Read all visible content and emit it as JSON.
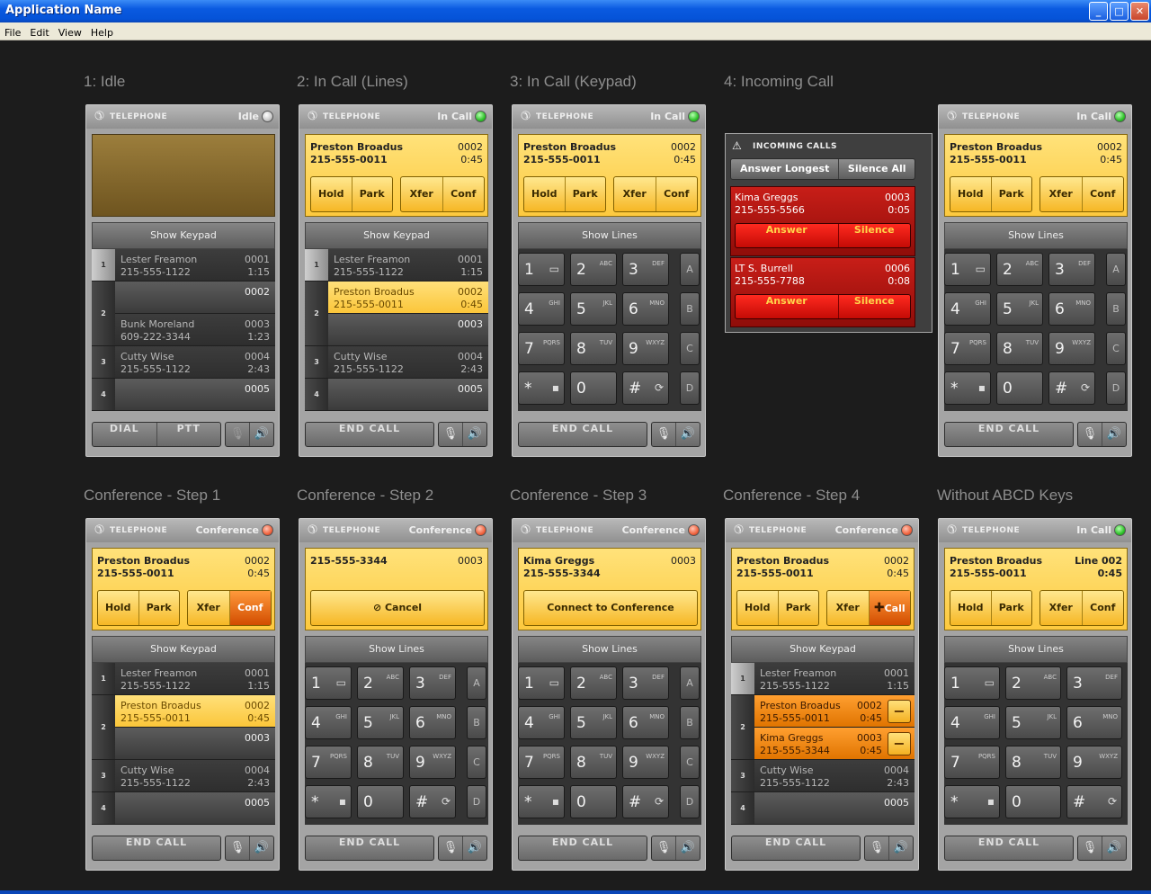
{
  "window": {
    "title": "Application Name",
    "buttons": {
      "minimize": "_",
      "maximize": "□",
      "close": "✕"
    }
  },
  "menu": [
    "File",
    "Edit",
    "View",
    "Help"
  ],
  "common": {
    "telephone": "TELEPHONE",
    "show_keypad": "Show Keypad",
    "show_lines": "Show Lines",
    "end_call": "END CALL",
    "dial": "DIAL",
    "ptt": "PTT",
    "hold": "Hold",
    "park": "Park",
    "xfer": "Xfer",
    "conf": "Conf",
    "cancel": "Cancel",
    "connect": "Connect to Conference",
    "add_call": "Call",
    "mic_icon": "mic-muted-icon",
    "speaker_icon": "speaker-icon"
  },
  "keypad": {
    "rows": [
      [
        {
          "d": "1",
          "s": ""
        },
        {
          "d": "2",
          "s": "ABC"
        },
        {
          "d": "3",
          "s": "DEF"
        },
        {
          "d": "A"
        }
      ],
      [
        {
          "d": "4",
          "s": "GHI"
        },
        {
          "d": "5",
          "s": "JKL"
        },
        {
          "d": "6",
          "s": "MNO"
        },
        {
          "d": "B"
        }
      ],
      [
        {
          "d": "7",
          "s": "PQRS"
        },
        {
          "d": "8",
          "s": "TUV"
        },
        {
          "d": "9",
          "s": "WXYZ"
        },
        {
          "d": "C"
        }
      ],
      [
        {
          "d": "*",
          "s": ""
        },
        {
          "d": "0",
          "s": ""
        },
        {
          "d": "#",
          "s": ""
        },
        {
          "d": "D"
        }
      ]
    ]
  },
  "panels": [
    {
      "label": "1: Idle",
      "status": "Idle",
      "dot": "gy",
      "lines": [
        {
          "tab": "1",
          "name": "Lester Freamon",
          "phone": "215-555-1122",
          "line": "0001",
          "dur": "1:15"
        },
        {
          "line": "0002"
        },
        {
          "tab": "2",
          "name": "Bunk Moreland",
          "phone": "609-222-3344",
          "line": "0003",
          "dur": "1:23"
        },
        {
          "tab": "3",
          "name": "Cutty Wise",
          "phone": "215-555-1122",
          "line": "0004",
          "dur": "2:43"
        },
        {
          "tab": "4",
          "line": "0005"
        }
      ]
    },
    {
      "label": "2: In Call (Lines)",
      "status": "In Call",
      "dot": "g",
      "call": {
        "name": "Preston Broadus",
        "phone": "215-555-0011",
        "line": "0002",
        "dur": "0:45"
      },
      "lines": [
        {
          "tab": "1",
          "name": "Lester Freamon",
          "phone": "215-555-1122",
          "line": "0001",
          "dur": "1:15"
        },
        {
          "tab": "2",
          "name": "Preston Broadus",
          "phone": "215-555-0011",
          "line": "0002",
          "dur": "0:45"
        },
        {
          "line": "0003"
        },
        {
          "tab": "3",
          "name": "Cutty Wise",
          "phone": "215-555-1122",
          "line": "0004",
          "dur": "2:43"
        },
        {
          "tab": "4",
          "line": "0005"
        }
      ]
    },
    {
      "label": "3: In Call (Keypad)",
      "status": "In Call",
      "dot": "g",
      "call": {
        "name": "Preston Broadus",
        "phone": "215-555-0011",
        "line": "0002",
        "dur": "0:45"
      }
    },
    {
      "label": "4: Incoming Call",
      "incoming": {
        "title": "INCOMING CALLS",
        "answer_longest": "Answer Longest",
        "silence_all": "Silence All",
        "answer": "Answer",
        "silence": "Silence",
        "calls": [
          {
            "name": "Kima Greggs",
            "phone": "215-555-5566",
            "line": "0003",
            "dur": "0:05"
          },
          {
            "name": "LT S. Burrell",
            "phone": "215-555-7788",
            "line": "0006",
            "dur": "0:08"
          }
        ]
      }
    },
    {
      "label": "",
      "status": "In Call",
      "dot": "g",
      "call": {
        "name": "Preston Broadus",
        "phone": "215-555-0011",
        "line": "0002",
        "dur": "0:45"
      }
    },
    {
      "label": "Conference - Step 1",
      "status": "Conference",
      "dot": "r",
      "call": {
        "name": "Preston Broadus",
        "phone": "215-555-0011",
        "line": "0002",
        "dur": "0:45"
      },
      "lines": [
        {
          "tab": "1",
          "name": "Lester Freamon",
          "phone": "215-555-1122",
          "line": "0001",
          "dur": "1:15"
        },
        {
          "tab": "2",
          "name": "Preston Broadus",
          "phone": "215-555-0011",
          "line": "0002",
          "dur": "0:45"
        },
        {
          "line": "0003"
        },
        {
          "tab": "3",
          "name": "Cutty Wise",
          "phone": "215-555-1122",
          "line": "0004",
          "dur": "2:43"
        },
        {
          "tab": "4",
          "line": "0005"
        }
      ]
    },
    {
      "label": "Conference - Step 2",
      "status": "Conference",
      "dot": "r",
      "call": {
        "name": "215-555-3344",
        "phone": "",
        "line": "0003",
        "dur": ""
      }
    },
    {
      "label": "Conference - Step 3",
      "status": "Conference",
      "dot": "r",
      "call": {
        "name": "Kima Greggs",
        "phone": "215-555-3344",
        "line": "0003",
        "dur": ""
      }
    },
    {
      "label": "Conference - Step 4",
      "status": "Conference",
      "dot": "r",
      "call": {
        "name": "Preston Broadus",
        "phone": "215-555-0011",
        "line": "0002",
        "dur": "0:45"
      },
      "lines": [
        {
          "tab": "1",
          "name": "Lester Freamon",
          "phone": "215-555-1122",
          "line": "0001",
          "dur": "1:15"
        },
        {
          "tab": "2",
          "name": "Preston Broadus",
          "phone": "215-555-0011",
          "line": "0002",
          "dur": "0:45"
        },
        {
          "name": "Kima Greggs",
          "phone": "215-555-3344",
          "line": "0003",
          "dur": "0:45"
        },
        {
          "tab": "3",
          "name": "Cutty Wise",
          "phone": "215-555-1122",
          "line": "0004",
          "dur": "2:43"
        },
        {
          "tab": "4",
          "line": "0005"
        }
      ]
    },
    {
      "label": "Without ABCD Keys",
      "status": "In Call",
      "dot": "g",
      "call": {
        "name": "Preston Broadus",
        "phone": "215-555-0011",
        "line": "Line 002",
        "dur": "0:45"
      }
    }
  ]
}
